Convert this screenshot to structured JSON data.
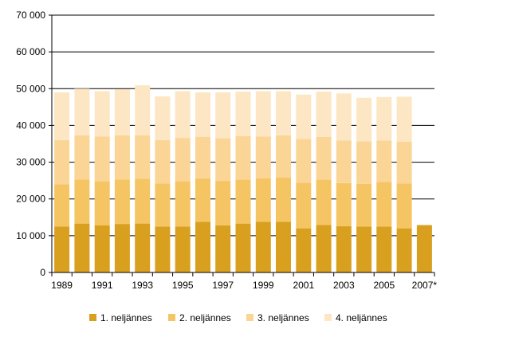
{
  "chart_data": {
    "type": "bar",
    "stacked": true,
    "categories": [
      "1989",
      "1990",
      "1991",
      "1992",
      "1993",
      "1994",
      "1995",
      "1996",
      "1997",
      "1998",
      "1999",
      "2000",
      "2001",
      "2002",
      "2003",
      "2004",
      "2005",
      "2006",
      "2007*"
    ],
    "x_tick_labels": [
      "1989",
      "1991",
      "1993",
      "1995",
      "1997",
      "1999",
      "2001",
      "2003",
      "2005",
      "2007*"
    ],
    "series": [
      {
        "name": "1. neljännes",
        "color": "#d9a020",
        "values": [
          12500,
          13300,
          12800,
          13200,
          13300,
          12500,
          12500,
          13800,
          12800,
          13300,
          13800,
          13800,
          12000,
          12900,
          12600,
          12500,
          12500,
          12000,
          12900
        ]
      },
      {
        "name": "2. neljännes",
        "color": "#f5c563",
        "values": [
          11500,
          12000,
          12000,
          12100,
          12200,
          11700,
          12300,
          11800,
          12100,
          12000,
          11800,
          12000,
          12400,
          12400,
          11700,
          11600,
          12100,
          12200,
          null
        ]
      },
      {
        "name": "3. neljännes",
        "color": "#fad596",
        "values": [
          12000,
          12000,
          12200,
          12000,
          11800,
          11800,
          11800,
          11300,
          11600,
          11800,
          11400,
          11500,
          11900,
          11600,
          11600,
          11600,
          11300,
          11400,
          null
        ]
      },
      {
        "name": "4. neljännes",
        "color": "#fde6c3",
        "values": [
          13000,
          12700,
          12300,
          12500,
          13600,
          11900,
          12700,
          12100,
          12500,
          12100,
          12300,
          12000,
          12100,
          12300,
          12800,
          11800,
          11800,
          12200,
          null
        ]
      }
    ],
    "y_ticks": [
      "0",
      "10 000",
      "20 000",
      "30 000",
      "40 000",
      "50 000",
      "60 000",
      "70 000"
    ],
    "ylim": [
      0,
      70000
    ],
    "grid": true,
    "legend_position": "bottom"
  }
}
